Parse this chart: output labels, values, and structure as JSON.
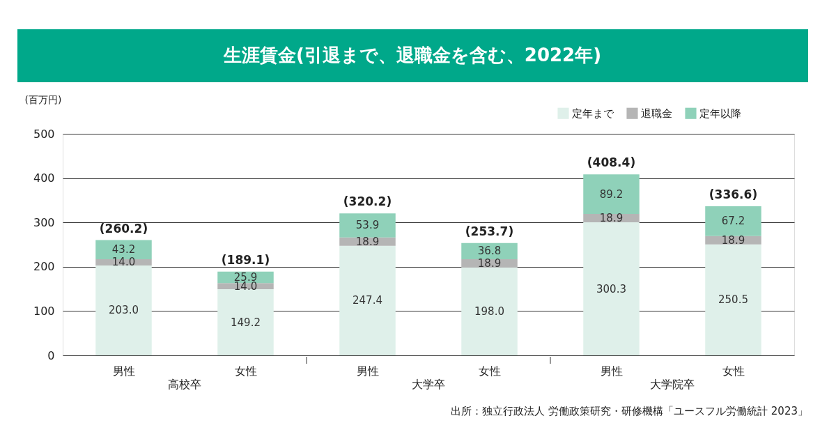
{
  "chart_data": {
    "type": "bar",
    "title": "生涯賃金(引退まで、退職金を含む、2022年)",
    "ylabel": "(百万円)",
    "categories": [
      "男性",
      "女性",
      "男性",
      "女性",
      "男性",
      "女性"
    ],
    "series": [
      {
        "name": "定年まで",
        "color": "#dff0ea",
        "values": [
          203.0,
          149.2,
          247.4,
          198.0,
          300.3,
          250.5
        ],
        "value_labels": [
          "203.0",
          "149.2",
          "247.4",
          "198.0",
          "300.3",
          "250.5"
        ]
      },
      {
        "name": "退職金",
        "color": "#b5b5b5",
        "values": [
          14.0,
          14.0,
          18.9,
          18.9,
          18.9,
          18.9
        ],
        "value_labels": [
          "14.0",
          "14.0",
          "18.9",
          "18.9",
          "18.9",
          "18.9"
        ]
      },
      {
        "name": "定年以降",
        "color": "#8fd1b9",
        "values": [
          43.2,
          25.9,
          53.9,
          36.8,
          89.2,
          67.2
        ],
        "value_labels": [
          "43.2",
          "25.9",
          "53.9",
          "36.8",
          "89.2",
          "67.2"
        ]
      }
    ],
    "stacked": true,
    "totals": [
      "(260.2)",
      "(189.1)",
      "(320.2)",
      "(253.7)",
      "(408.4)",
      "(336.6)"
    ],
    "ylim": [
      0,
      500
    ],
    "yticks": [
      0,
      100,
      200,
      300,
      400,
      500
    ],
    "grid": "y",
    "legend": "top right",
    "annotations": [
      "高校卒",
      "大学卒",
      "大学院卒",
      "出所：独立行政法人 労働政策研究・研修機構「ユースフル労働統計 2023」"
    ]
  }
}
